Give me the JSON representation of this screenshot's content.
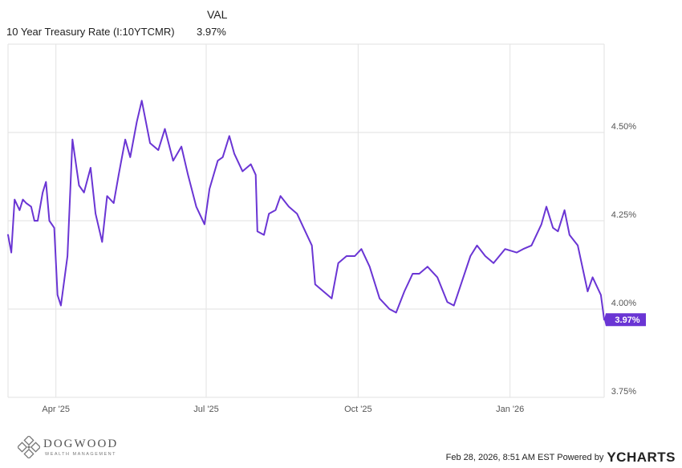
{
  "legend": {
    "header": "VAL",
    "series_name": "10 Year Treasury Rate (I:10YTCMR)",
    "series_value": "3.97%"
  },
  "footer": {
    "logo_text": "DOGWOOD",
    "logo_subtext": "WEALTH MANAGEMENT",
    "timestamp": "Feb 28, 2026, 8:51 AM EST Powered by",
    "brand": "YCHARTS"
  },
  "colors": {
    "series": "#6a35d4",
    "grid": "#e2e2e2",
    "axis_text": "#555555"
  },
  "chart_data": {
    "type": "line",
    "title": "",
    "xlabel": "",
    "ylabel": "",
    "ylim": [
      3.75,
      4.75
    ],
    "ytick_labels": [
      "4.50%",
      "4.25%",
      "4.00%",
      "3.75%"
    ],
    "yticks": [
      4.5,
      4.25,
      4.0,
      3.75
    ],
    "xlim": [
      "2025-03-03",
      "2026-02-27"
    ],
    "xtick_labels": [
      "Apr '25",
      "Jul '25",
      "Oct '25",
      "Jan '26"
    ],
    "xticks": [
      "2025-04-01",
      "2025-07-01",
      "2025-10-01",
      "2026-01-01"
    ],
    "grid": true,
    "last_value_label": "3.97%",
    "series": [
      {
        "name": "10 Year Treasury Rate (I:10YTCMR)",
        "x": [
          "2025-03-03",
          "2025-03-05",
          "2025-03-07",
          "2025-03-10",
          "2025-03-12",
          "2025-03-14",
          "2025-03-17",
          "2025-03-19",
          "2025-03-21",
          "2025-03-24",
          "2025-03-26",
          "2025-03-28",
          "2025-03-31",
          "2025-04-02",
          "2025-04-04",
          "2025-04-08",
          "2025-04-11",
          "2025-04-15",
          "2025-04-18",
          "2025-04-22",
          "2025-04-25",
          "2025-04-29",
          "2025-05-02",
          "2025-05-06",
          "2025-05-09",
          "2025-05-13",
          "2025-05-16",
          "2025-05-20",
          "2025-05-23",
          "2025-05-28",
          "2025-06-02",
          "2025-06-06",
          "2025-06-11",
          "2025-06-16",
          "2025-06-20",
          "2025-06-25",
          "2025-06-30",
          "2025-07-03",
          "2025-07-08",
          "2025-07-11",
          "2025-07-15",
          "2025-07-18",
          "2025-07-23",
          "2025-07-28",
          "2025-07-31",
          "2025-08-01",
          "2025-08-05",
          "2025-08-08",
          "2025-08-12",
          "2025-08-15",
          "2025-08-20",
          "2025-08-25",
          "2025-08-29",
          "2025-09-03",
          "2025-09-05",
          "2025-09-10",
          "2025-09-15",
          "2025-09-19",
          "2025-09-24",
          "2025-09-29",
          "2025-10-03",
          "2025-10-08",
          "2025-10-14",
          "2025-10-20",
          "2025-10-24",
          "2025-10-29",
          "2025-11-03",
          "2025-11-07",
          "2025-11-12",
          "2025-11-18",
          "2025-11-24",
          "2025-11-28",
          "2025-12-03",
          "2025-12-08",
          "2025-12-12",
          "2025-12-17",
          "2025-12-22",
          "2025-12-29",
          "2026-01-05",
          "2026-01-09",
          "2026-01-14",
          "2026-01-20",
          "2026-01-23",
          "2026-01-27",
          "2026-01-30",
          "2026-02-03",
          "2026-02-06",
          "2026-02-11",
          "2026-02-17",
          "2026-02-20",
          "2026-02-25",
          "2026-02-27"
        ],
        "y": [
          4.21,
          4.16,
          4.31,
          4.28,
          4.31,
          4.3,
          4.29,
          4.25,
          4.25,
          4.33,
          4.36,
          4.25,
          4.23,
          4.04,
          4.01,
          4.15,
          4.48,
          4.35,
          4.33,
          4.4,
          4.27,
          4.19,
          4.32,
          4.3,
          4.38,
          4.48,
          4.43,
          4.53,
          4.59,
          4.47,
          4.45,
          4.51,
          4.42,
          4.46,
          4.38,
          4.29,
          4.24,
          4.34,
          4.42,
          4.43,
          4.49,
          4.44,
          4.39,
          4.41,
          4.38,
          4.22,
          4.21,
          4.27,
          4.28,
          4.32,
          4.29,
          4.27,
          4.23,
          4.18,
          4.07,
          4.05,
          4.03,
          4.13,
          4.15,
          4.15,
          4.17,
          4.12,
          4.03,
          4.0,
          3.99,
          4.05,
          4.1,
          4.1,
          4.12,
          4.09,
          4.02,
          4.01,
          4.08,
          4.15,
          4.18,
          4.15,
          4.13,
          4.17,
          4.16,
          4.17,
          4.18,
          4.24,
          4.29,
          4.23,
          4.22,
          4.28,
          4.21,
          4.18,
          4.05,
          4.09,
          4.04,
          3.97
        ]
      }
    ]
  }
}
